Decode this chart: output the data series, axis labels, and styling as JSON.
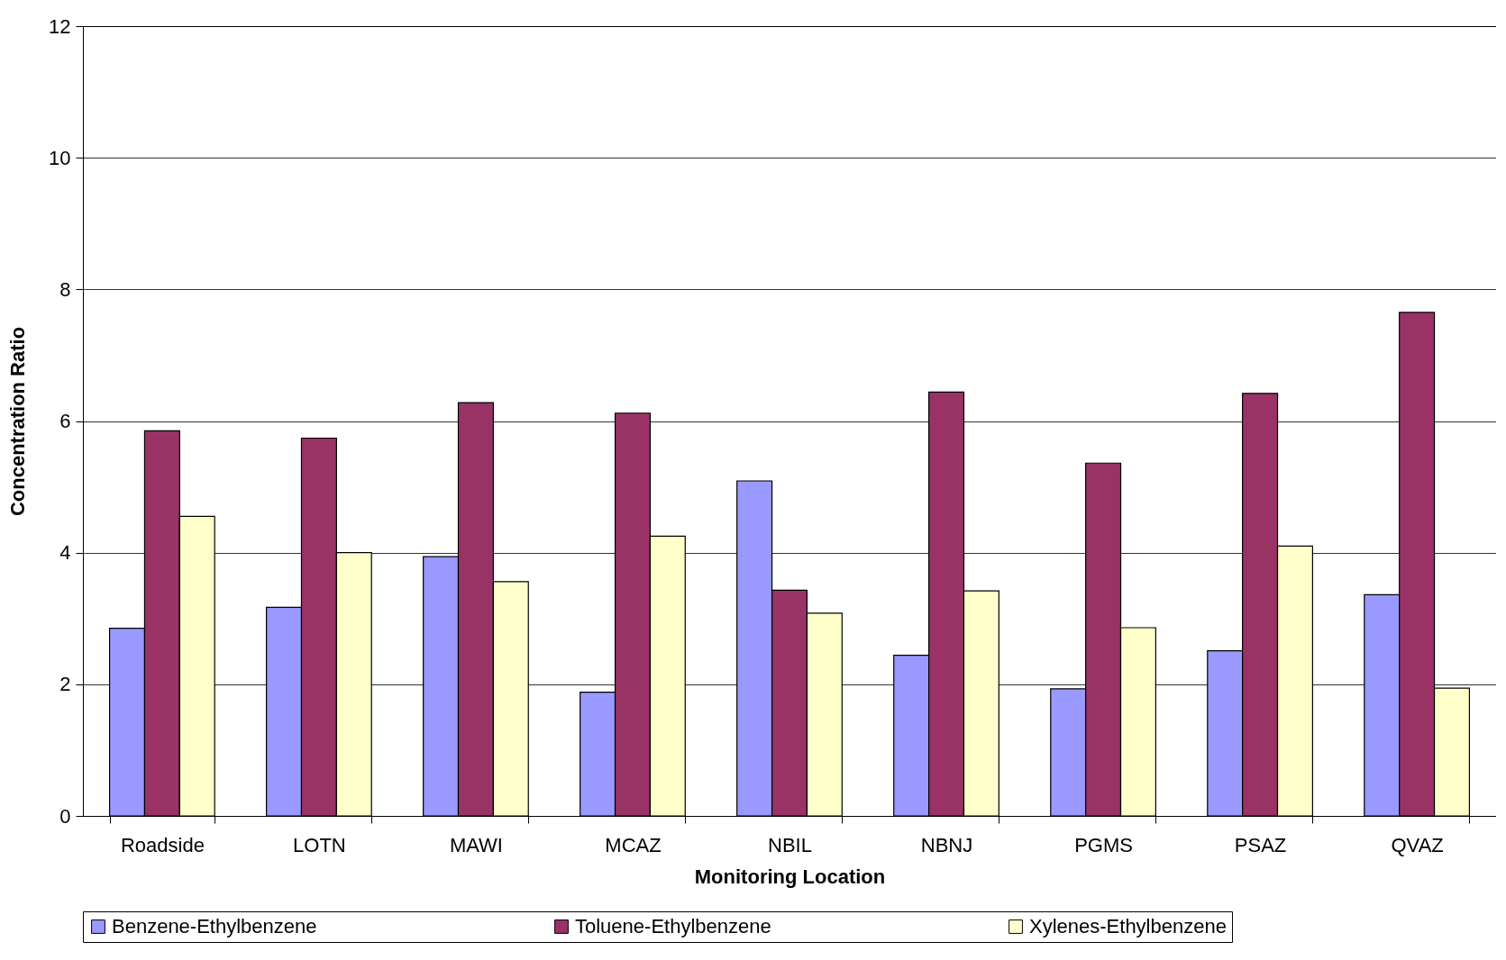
{
  "chart_data": {
    "type": "bar",
    "xlabel": "Monitoring Location",
    "ylabel": "Concentration Ratio",
    "categories": [
      "Roadside",
      "LOTN",
      "MAWI",
      "MCAZ",
      "NBIL",
      "NBNJ",
      "PGMS",
      "PSAZ",
      "QVAZ"
    ],
    "series": [
      {
        "name": "Benzene-Ethylbenzene",
        "color": "#9999ff",
        "values": [
          2.85,
          3.17,
          3.94,
          1.88,
          5.09,
          2.44,
          1.93,
          2.51,
          3.36
        ]
      },
      {
        "name": "Toluene-Ethylbenzene",
        "color": "#993366",
        "values": [
          5.85,
          5.74,
          6.28,
          6.12,
          3.43,
          6.44,
          5.36,
          6.42,
          7.65
        ]
      },
      {
        "name": "Xylenes-Ethylbenzene",
        "color": "#ffffcc",
        "values": [
          4.55,
          4.0,
          3.56,
          4.25,
          3.08,
          3.42,
          2.86,
          4.1,
          1.94
        ]
      }
    ],
    "ylim": [
      0,
      12
    ],
    "yticks": [
      0,
      2,
      4,
      6,
      8,
      10,
      12
    ],
    "grid": "y",
    "legend": "bottom"
  }
}
